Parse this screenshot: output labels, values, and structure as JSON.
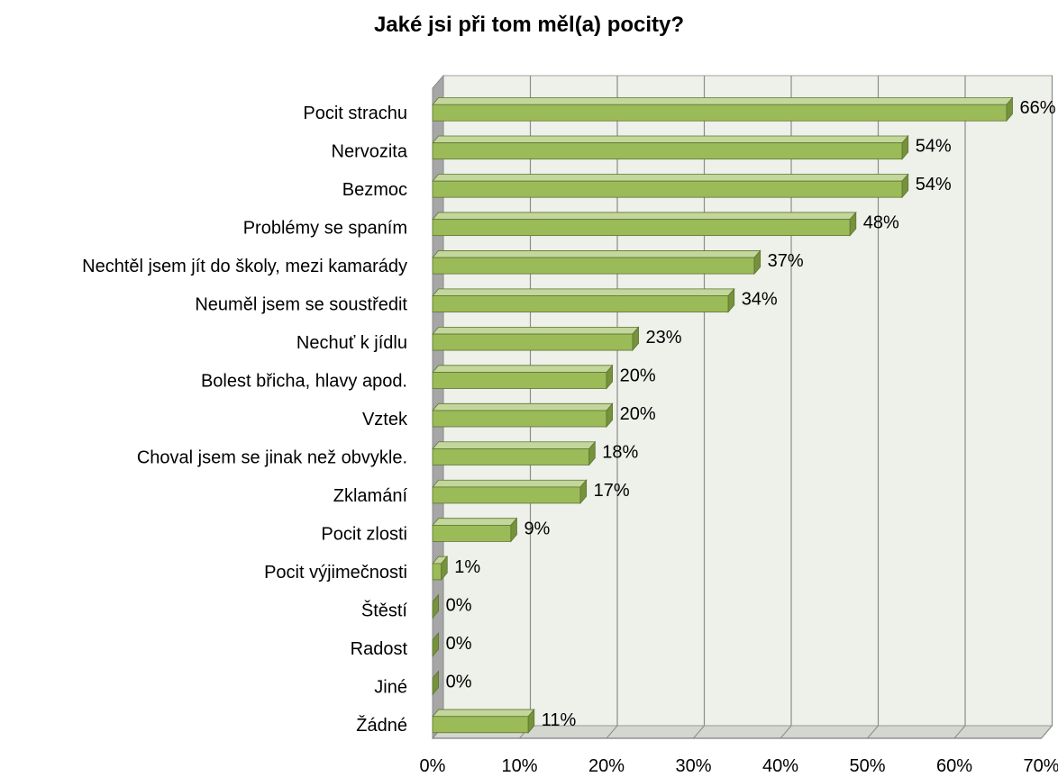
{
  "chart_data": {
    "type": "bar",
    "orientation": "horizontal",
    "title": "Jaké jsi při tom měl(a) pocity?",
    "xlabel": "",
    "ylabel": "",
    "categories": [
      "Pocit strachu",
      "Nervozita",
      "Bezmoc",
      "Problémy se spaním",
      "Nechtěl jsem jít do školy, mezi kamarády",
      "Neuměl jsem se soustředit",
      "Nechuť k jídlu",
      "Bolest břicha, hlavy apod.",
      "Vztek",
      "Choval jsem se jinak než obvykle.",
      "Zklamání",
      "Pocit zlosti",
      "Pocit výjimečnosti",
      "Štěstí",
      "Radost",
      "Jiné",
      "Žádné"
    ],
    "values": [
      66,
      54,
      54,
      48,
      37,
      34,
      23,
      20,
      20,
      18,
      17,
      9,
      1,
      0,
      0,
      0,
      11
    ],
    "value_labels": [
      "66%",
      "54%",
      "54%",
      "48%",
      "37%",
      "34%",
      "23%",
      "20%",
      "20%",
      "18%",
      "17%",
      "9%",
      "1%",
      "0%",
      "0%",
      "0%",
      "11%"
    ],
    "xlim": [
      0,
      70
    ],
    "x_ticks": [
      "0%",
      "10%",
      "20%",
      "30%",
      "40%",
      "50%",
      "60%",
      "70%"
    ],
    "grid": true,
    "legend": "none",
    "style": "3d",
    "colors": {
      "bar_front": "#9bbb59",
      "bar_top": "#c3d69b",
      "bar_side": "#76923c",
      "bar_edge": "#5f7530",
      "plot_back": "#eef0ea",
      "plot_floor": "#d4d6d0",
      "left_wall": "#a6a6a6",
      "gridline": "#8c8c8c"
    }
  }
}
